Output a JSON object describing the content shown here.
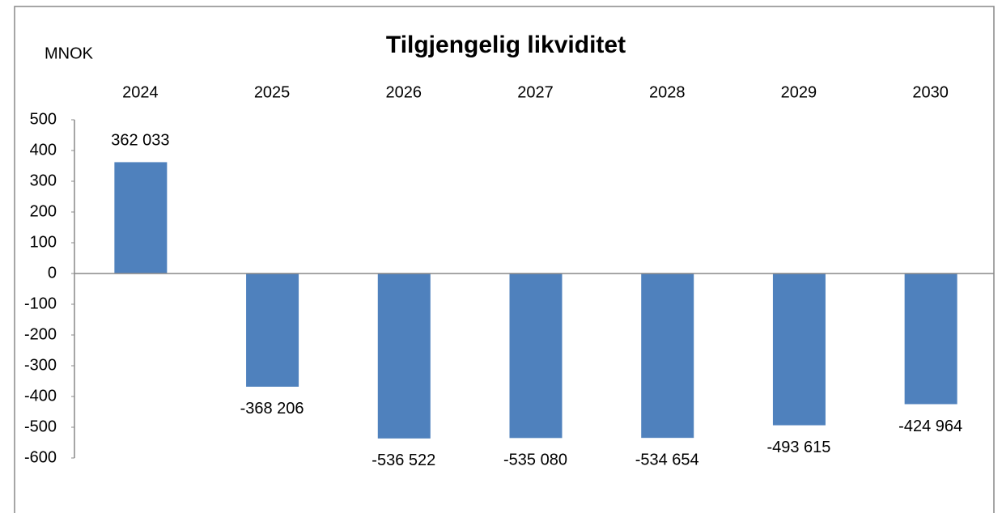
{
  "chart_data": {
    "type": "bar",
    "title": "Tilgjengelig likviditet",
    "y_label": "MNOK",
    "categories": [
      "2024",
      "2025",
      "2026",
      "2027",
      "2028",
      "2029",
      "2030"
    ],
    "values": [
      362.033,
      -368.206,
      -536.522,
      -535.08,
      -534.654,
      -493.615,
      -424.964
    ],
    "value_labels": [
      "362 033",
      "-368 206",
      "-536 522",
      "-535 080",
      "-534 654",
      "-493 615",
      "-424 964"
    ],
    "color": "#4f81bd",
    "ylim": [
      -600,
      500
    ],
    "yticks": [
      -600,
      -500,
      -400,
      -300,
      -200,
      -100,
      0,
      100,
      200,
      300,
      400,
      500
    ],
    "grid": false
  }
}
